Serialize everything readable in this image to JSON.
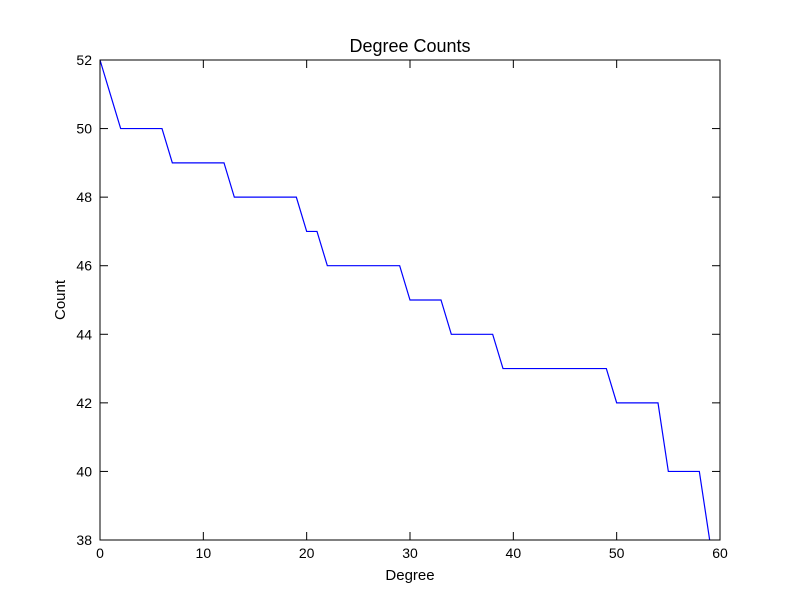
{
  "chart_data": {
    "type": "line",
    "title": "Degree Counts",
    "xlabel": "Degree",
    "ylabel": "Count",
    "xlim": [
      0,
      60
    ],
    "ylim": [
      38,
      52
    ],
    "xticks": [
      0,
      10,
      20,
      30,
      40,
      50,
      60
    ],
    "yticks": [
      38,
      40,
      42,
      44,
      46,
      48,
      50,
      52
    ],
    "grid": false,
    "series": [
      {
        "color": "#0000ff",
        "x": [
          0,
          1,
          2,
          3,
          4,
          5,
          6,
          7,
          8,
          9,
          10,
          11,
          12,
          13,
          14,
          15,
          16,
          17,
          18,
          19,
          20,
          21,
          22,
          23,
          24,
          25,
          26,
          27,
          28,
          29,
          30,
          31,
          32,
          33,
          34,
          35,
          36,
          37,
          38,
          39,
          40,
          41,
          42,
          43,
          44,
          45,
          46,
          47,
          48,
          49,
          50,
          51,
          52,
          53,
          54,
          55,
          56,
          57,
          58,
          59
        ],
        "y": [
          52,
          51,
          50,
          50,
          50,
          50,
          50,
          49,
          49,
          49,
          49,
          49,
          49,
          48,
          48,
          48,
          48,
          48,
          48,
          48,
          47,
          47,
          46,
          46,
          46,
          46,
          46,
          46,
          46,
          46,
          45,
          45,
          45,
          45,
          44,
          44,
          44,
          44,
          44,
          43,
          43,
          43,
          43,
          43,
          43,
          43,
          43,
          43,
          43,
          43,
          42,
          42,
          42,
          42,
          42,
          40,
          40,
          40,
          40,
          38
        ]
      }
    ]
  }
}
